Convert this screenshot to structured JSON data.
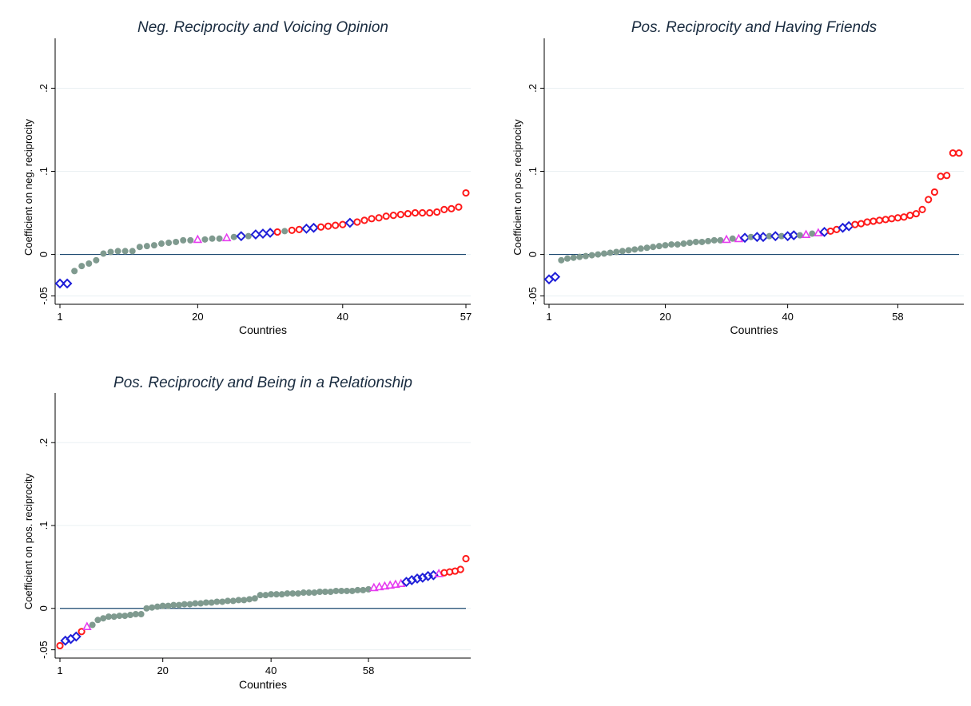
{
  "colors": {
    "green": "#7f9a8f",
    "red": "#ff1a1a",
    "blue": "#1f1fd8",
    "magenta": "#e63cf0",
    "zero_line": "#1a476f",
    "title": "#1a2c40",
    "grid": "#eaf0f3"
  },
  "chart_data": [
    {
      "type": "scatter",
      "title": "Neg. Reciprocity and Voicing Opinion",
      "xlabel": "Countries",
      "ylabel": "Coefficient on neg. reciprocity",
      "xlim": [
        1,
        57
      ],
      "ylim": [
        -0.06,
        0.26
      ],
      "xticks": [
        "1",
        "20",
        "40",
        "57"
      ],
      "xtick_values": [
        1,
        20,
        40,
        57
      ],
      "yticks": [
        "-.05",
        "0",
        ".1",
        ".2"
      ],
      "ytick_values": [
        -0.05,
        0,
        0.1,
        0.2
      ],
      "grid": true,
      "reference_line": 0,
      "markers": [
        "d",
        "d",
        "g",
        "g",
        "g",
        "g",
        "g",
        "g",
        "g",
        "g",
        "g",
        "g",
        "g",
        "g",
        "g",
        "g",
        "g",
        "g",
        "g",
        "t",
        "g",
        "g",
        "g",
        "t",
        "g",
        "d",
        "g",
        "d",
        "d",
        "d",
        "o",
        "g",
        "o",
        "o",
        "d",
        "d",
        "o",
        "o",
        "o",
        "o",
        "d",
        "o",
        "o",
        "o",
        "o",
        "o",
        "o",
        "o",
        "o",
        "o",
        "o",
        "o",
        "o",
        "o",
        "o",
        "o",
        "o"
      ],
      "values": [
        -0.035,
        -0.035,
        -0.02,
        -0.014,
        -0.011,
        -0.007,
        0.001,
        0.003,
        0.004,
        0.004,
        0.004,
        0.009,
        0.01,
        0.011,
        0.013,
        0.014,
        0.015,
        0.017,
        0.017,
        0.018,
        0.018,
        0.019,
        0.019,
        0.02,
        0.021,
        0.022,
        0.022,
        0.024,
        0.025,
        0.026,
        0.027,
        0.028,
        0.029,
        0.03,
        0.031,
        0.032,
        0.033,
        0.034,
        0.035,
        0.036,
        0.038,
        0.039,
        0.041,
        0.043,
        0.044,
        0.046,
        0.047,
        0.048,
        0.049,
        0.05,
        0.05,
        0.05,
        0.051,
        0.054,
        0.055,
        0.057,
        0.074
      ]
    },
    {
      "type": "scatter",
      "title": "Pos. Reciprocity and Having Friends",
      "xlabel": "Countries",
      "ylabel": "Coefficient on pos. reciprocity",
      "xlim": [
        1,
        68
      ],
      "ylim": [
        -0.06,
        0.26
      ],
      "xticks": [
        "1",
        "20",
        "40",
        "58"
      ],
      "xtick_values": [
        1,
        20,
        40,
        58
      ],
      "yticks": [
        "-.05",
        "0",
        ".1",
        ".2"
      ],
      "ytick_values": [
        -0.05,
        0,
        0.1,
        0.2
      ],
      "grid": true,
      "reference_line": 0,
      "markers": [
        "d",
        "d",
        "g",
        "g",
        "g",
        "g",
        "g",
        "g",
        "g",
        "g",
        "g",
        "g",
        "g",
        "g",
        "g",
        "g",
        "g",
        "g",
        "g",
        "g",
        "g",
        "g",
        "g",
        "g",
        "g",
        "g",
        "g",
        "g",
        "g",
        "t",
        "g",
        "t",
        "d",
        "g",
        "d",
        "d",
        "g",
        "d",
        "g",
        "d",
        "d",
        "g",
        "t",
        "g",
        "t",
        "d",
        "o",
        "o",
        "d",
        "d",
        "o",
        "o",
        "o",
        "o",
        "o",
        "o",
        "o",
        "o",
        "o",
        "o",
        "o",
        "o",
        "o",
        "o",
        "o",
        "o",
        "o",
        "o"
      ],
      "values": [
        -0.03,
        -0.027,
        -0.007,
        -0.005,
        -0.004,
        -0.003,
        -0.002,
        -0.001,
        0.0,
        0.001,
        0.002,
        0.003,
        0.004,
        0.005,
        0.006,
        0.007,
        0.008,
        0.009,
        0.01,
        0.011,
        0.012,
        0.012,
        0.013,
        0.014,
        0.015,
        0.015,
        0.016,
        0.017,
        0.017,
        0.018,
        0.019,
        0.019,
        0.02,
        0.021,
        0.021,
        0.021,
        0.022,
        0.022,
        0.022,
        0.022,
        0.023,
        0.023,
        0.024,
        0.025,
        0.026,
        0.027,
        0.028,
        0.03,
        0.032,
        0.034,
        0.036,
        0.037,
        0.039,
        0.04,
        0.041,
        0.042,
        0.043,
        0.044,
        0.045,
        0.047,
        0.049,
        0.054,
        0.066,
        0.075,
        0.094,
        0.095,
        0.122,
        0.122
      ]
    },
    {
      "type": "scatter",
      "title": "Pos. Reciprocity and Being in a Relationship",
      "xlabel": "Countries",
      "ylabel": "Coefficient on pos. reciprocity",
      "xlim": [
        1,
        76
      ],
      "ylim": [
        -0.06,
        0.26
      ],
      "xticks": [
        "1",
        "20",
        "40",
        "58"
      ],
      "xtick_values": [
        1,
        20,
        40,
        58
      ],
      "yticks": [
        "-.05",
        "0",
        ".1",
        ".2"
      ],
      "ytick_values": [
        -0.05,
        0,
        0.1,
        0.2
      ],
      "grid": true,
      "reference_line": 0,
      "markers": [
        "o",
        "d",
        "d",
        "d",
        "o",
        "t",
        "g",
        "g",
        "g",
        "g",
        "g",
        "g",
        "g",
        "g",
        "g",
        "g",
        "g",
        "g",
        "g",
        "g",
        "g",
        "g",
        "g",
        "g",
        "g",
        "g",
        "g",
        "g",
        "g",
        "g",
        "g",
        "g",
        "g",
        "g",
        "g",
        "g",
        "g",
        "g",
        "g",
        "g",
        "g",
        "g",
        "g",
        "g",
        "g",
        "g",
        "g",
        "g",
        "g",
        "g",
        "g",
        "g",
        "g",
        "g",
        "g",
        "g",
        "g",
        "g",
        "t",
        "t",
        "t",
        "t",
        "t",
        "t",
        "d",
        "d",
        "d",
        "d",
        "d",
        "d",
        "t",
        "o",
        "o",
        "o",
        "o",
        "o"
      ],
      "values": [
        -0.045,
        -0.039,
        -0.037,
        -0.034,
        -0.028,
        -0.022,
        -0.02,
        -0.014,
        -0.012,
        -0.01,
        -0.01,
        -0.009,
        -0.009,
        -0.008,
        -0.007,
        -0.007,
        0.0,
        0.001,
        0.002,
        0.003,
        0.003,
        0.004,
        0.004,
        0.005,
        0.005,
        0.006,
        0.006,
        0.007,
        0.007,
        0.008,
        0.008,
        0.009,
        0.009,
        0.01,
        0.01,
        0.011,
        0.012,
        0.016,
        0.016,
        0.017,
        0.017,
        0.017,
        0.018,
        0.018,
        0.018,
        0.019,
        0.019,
        0.019,
        0.02,
        0.02,
        0.02,
        0.021,
        0.021,
        0.021,
        0.021,
        0.022,
        0.022,
        0.023,
        0.025,
        0.026,
        0.027,
        0.028,
        0.029,
        0.03,
        0.032,
        0.034,
        0.036,
        0.037,
        0.039,
        0.04,
        0.042,
        0.043,
        0.044,
        0.045,
        0.047,
        0.06
      ]
    }
  ]
}
